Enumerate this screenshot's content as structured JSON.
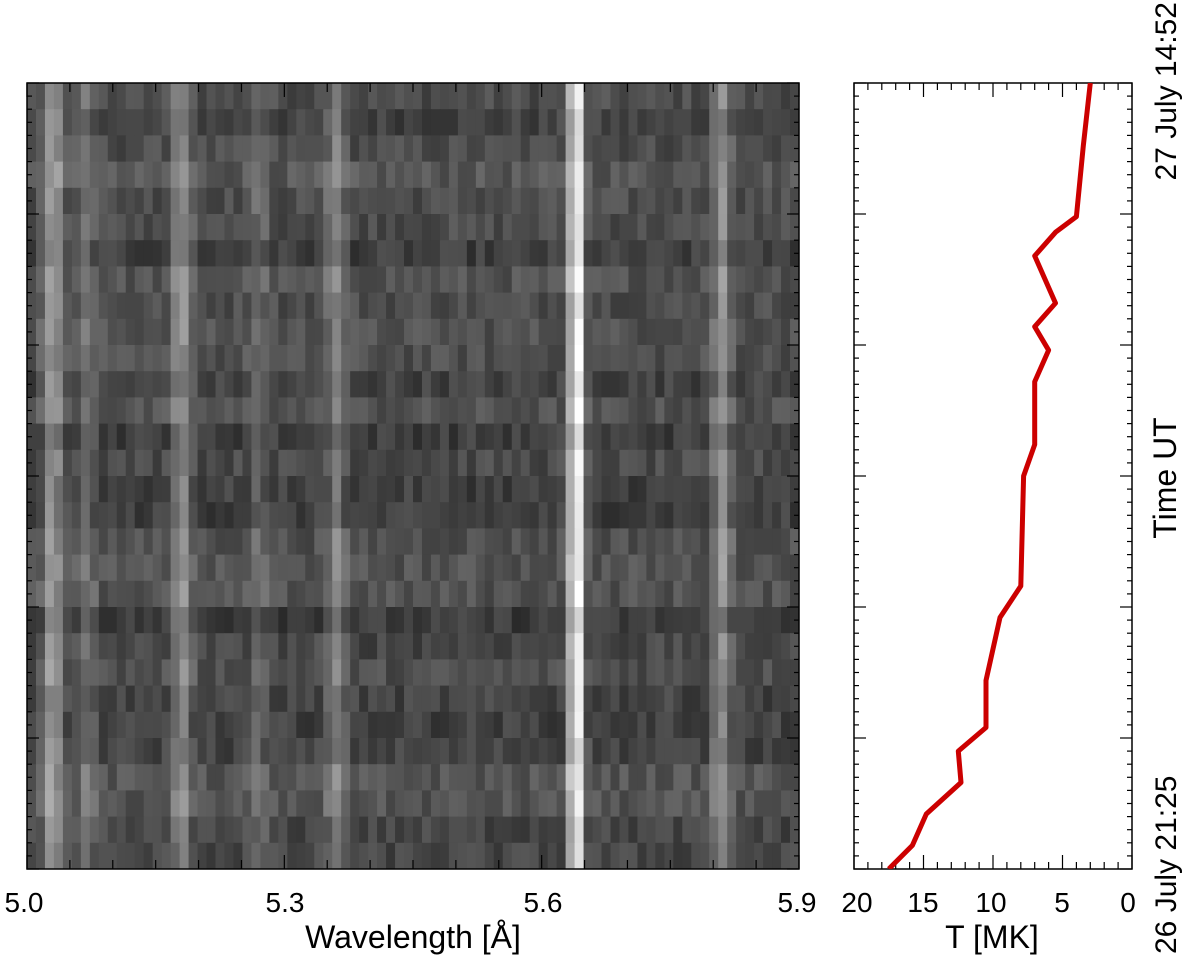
{
  "chart_data": [
    {
      "type": "heatmap",
      "colormap": "grayscale",
      "xlabel": "Wavelength [Å]",
      "xticks": [
        "5.0",
        "5.3",
        "5.6",
        "5.9"
      ],
      "xlim": [
        5.0,
        5.9
      ],
      "n_time_rows": 30,
      "bright_lines_angstrom": [
        5.03,
        5.07,
        5.18,
        5.27,
        5.36,
        5.64,
        5.81
      ],
      "strongest_line_angstrom": 5.64
    },
    {
      "type": "line",
      "xlabel": "T [MK]",
      "ylabel": "Time UT",
      "xticks": [
        "20",
        "15",
        "10",
        "5",
        "0"
      ],
      "xlim": [
        20,
        0
      ],
      "time_start_label": "26 July 21:25",
      "time_end_label": "27 July 14:52",
      "line_color": "#cc0000",
      "series": [
        {
          "x": [
            17.5,
            15.8,
            14.8,
            12.3,
            12.5,
            10.5,
            10.5,
            9.5,
            8.0,
            7.8,
            7.8,
            7.0,
            7.0,
            6.0,
            7.0,
            5.5,
            7.0,
            5.5,
            4.0,
            3.5,
            3.0
          ],
          "y_fraction_of_interval": [
            0.0,
            0.03,
            0.07,
            0.11,
            0.15,
            0.18,
            0.24,
            0.32,
            0.36,
            0.5,
            0.5,
            0.54,
            0.62,
            0.66,
            0.69,
            0.72,
            0.78,
            0.81,
            0.83,
            0.92,
            1.0
          ]
        }
      ]
    }
  ],
  "colors": {
    "axis": "#000000",
    "curve": "#cc0000"
  }
}
